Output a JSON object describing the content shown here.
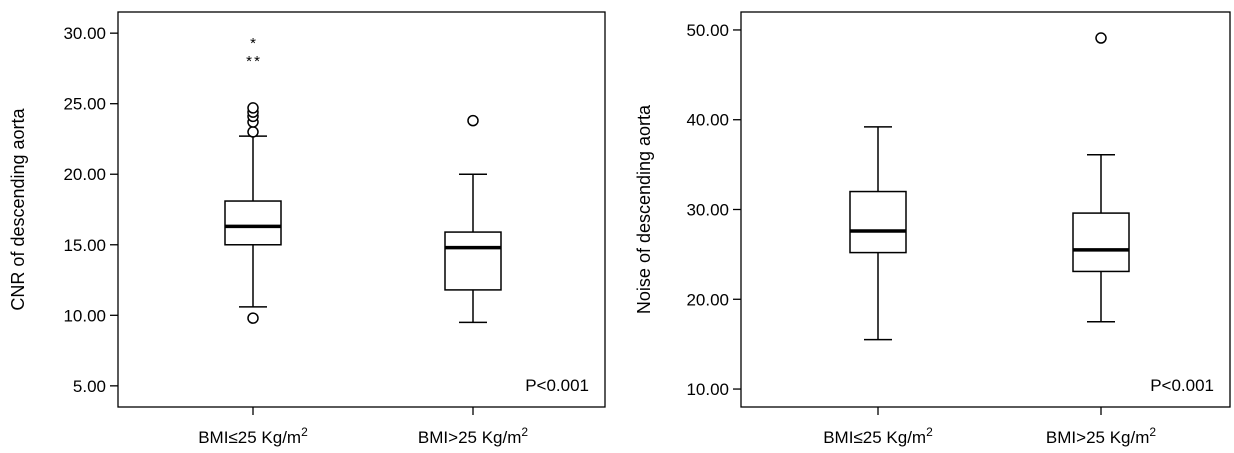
{
  "chart_data": [
    {
      "type": "boxplot",
      "ylabel": "CNR of descending aorta",
      "ylim": [
        3.5,
        31.5
      ],
      "yticks": [
        "5.00",
        "10.00",
        "15.00",
        "20.00",
        "25.00",
        "30.00"
      ],
      "ytick_values": [
        5,
        10,
        15,
        20,
        25,
        30
      ],
      "categories": [
        "BMI≤25 Kg/m2",
        "BMI>25 Kg/m2"
      ],
      "annotation": "P<0.001",
      "boxes": [
        {
          "category": "BMI≤25 Kg/m2",
          "whisker_low": 10.6,
          "q1": 15.0,
          "median": 16.3,
          "q3": 18.1,
          "whisker_high": 22.7,
          "outliers": [
            9.8,
            23.0,
            23.7,
            24.1,
            24.4,
            24.7
          ],
          "extremes": [
            28.3,
            28.3,
            29.6
          ]
        },
        {
          "category": "BMI>25 Kg/m2",
          "whisker_low": 9.5,
          "q1": 11.8,
          "median": 14.8,
          "q3": 15.9,
          "whisker_high": 20.0,
          "outliers": [
            23.8
          ],
          "extremes": []
        }
      ]
    },
    {
      "type": "boxplot",
      "ylabel": "Noise of descending aorta",
      "ylim": [
        8.0,
        52.0
      ],
      "yticks": [
        "10.00",
        "20.00",
        "30.00",
        "40.00",
        "50.00"
      ],
      "ytick_values": [
        10,
        20,
        30,
        40,
        50
      ],
      "categories": [
        "BMI≤25 Kg/m2",
        "BMI>25 Kg/m2"
      ],
      "annotation": "P<0.001",
      "boxes": [
        {
          "category": "BMI≤25 Kg/m2",
          "whisker_low": 15.5,
          "q1": 25.2,
          "median": 27.6,
          "q3": 32.0,
          "whisker_high": 39.2,
          "outliers": [],
          "extremes": []
        },
        {
          "category": "BMI>25 Kg/m2",
          "whisker_low": 17.5,
          "q1": 23.1,
          "median": 25.5,
          "q3": 29.6,
          "whisker_high": 36.1,
          "outliers": [
            49.1
          ],
          "extremes": []
        }
      ]
    }
  ]
}
